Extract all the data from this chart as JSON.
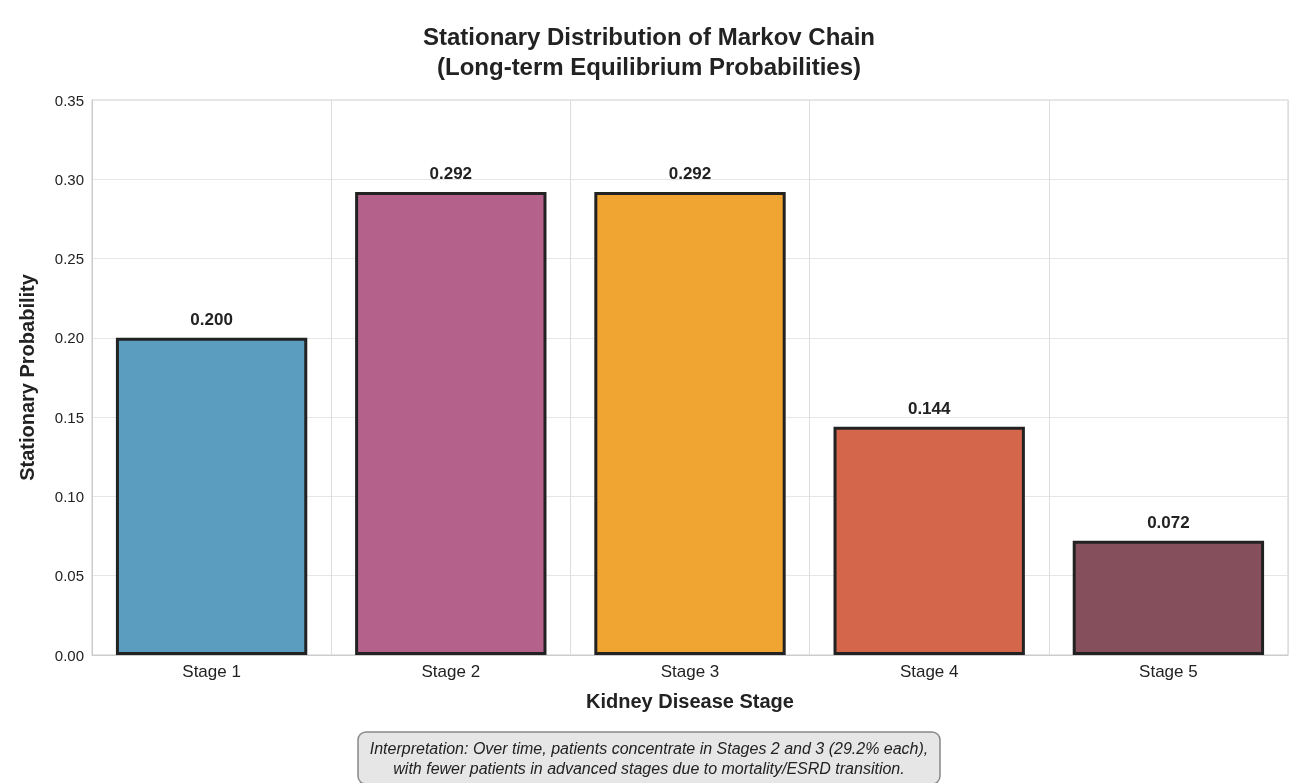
{
  "chart_data": {
    "type": "bar",
    "title": "Stationary Distribution of Markov Chain\n(Long-term Equilibrium Probabilities)",
    "xlabel": "Kidney Disease Stage",
    "ylabel": "Stationary Probability",
    "categories": [
      "Stage 1",
      "Stage 2",
      "Stage 3",
      "Stage 4",
      "Stage 5"
    ],
    "values": [
      0.2,
      0.292,
      0.292,
      0.144,
      0.072
    ],
    "colors": [
      "#5a9dbf",
      "#b4628b",
      "#f0a432",
      "#d4664b",
      "#864f5c"
    ],
    "value_labels": [
      "0.200",
      "0.292",
      "0.292",
      "0.144",
      "0.072"
    ],
    "ylim": [
      0,
      0.35
    ],
    "yticks": [
      "0.00",
      "0.05",
      "0.10",
      "0.15",
      "0.20",
      "0.25",
      "0.30",
      "0.35"
    ],
    "grid": true,
    "annotations": [
      "Interpretation: Over time, patients concentrate in Stages 2 and 3 (29.2% each),\nwith fewer patients in advanced stages due to mortality/ESRD transition."
    ]
  }
}
